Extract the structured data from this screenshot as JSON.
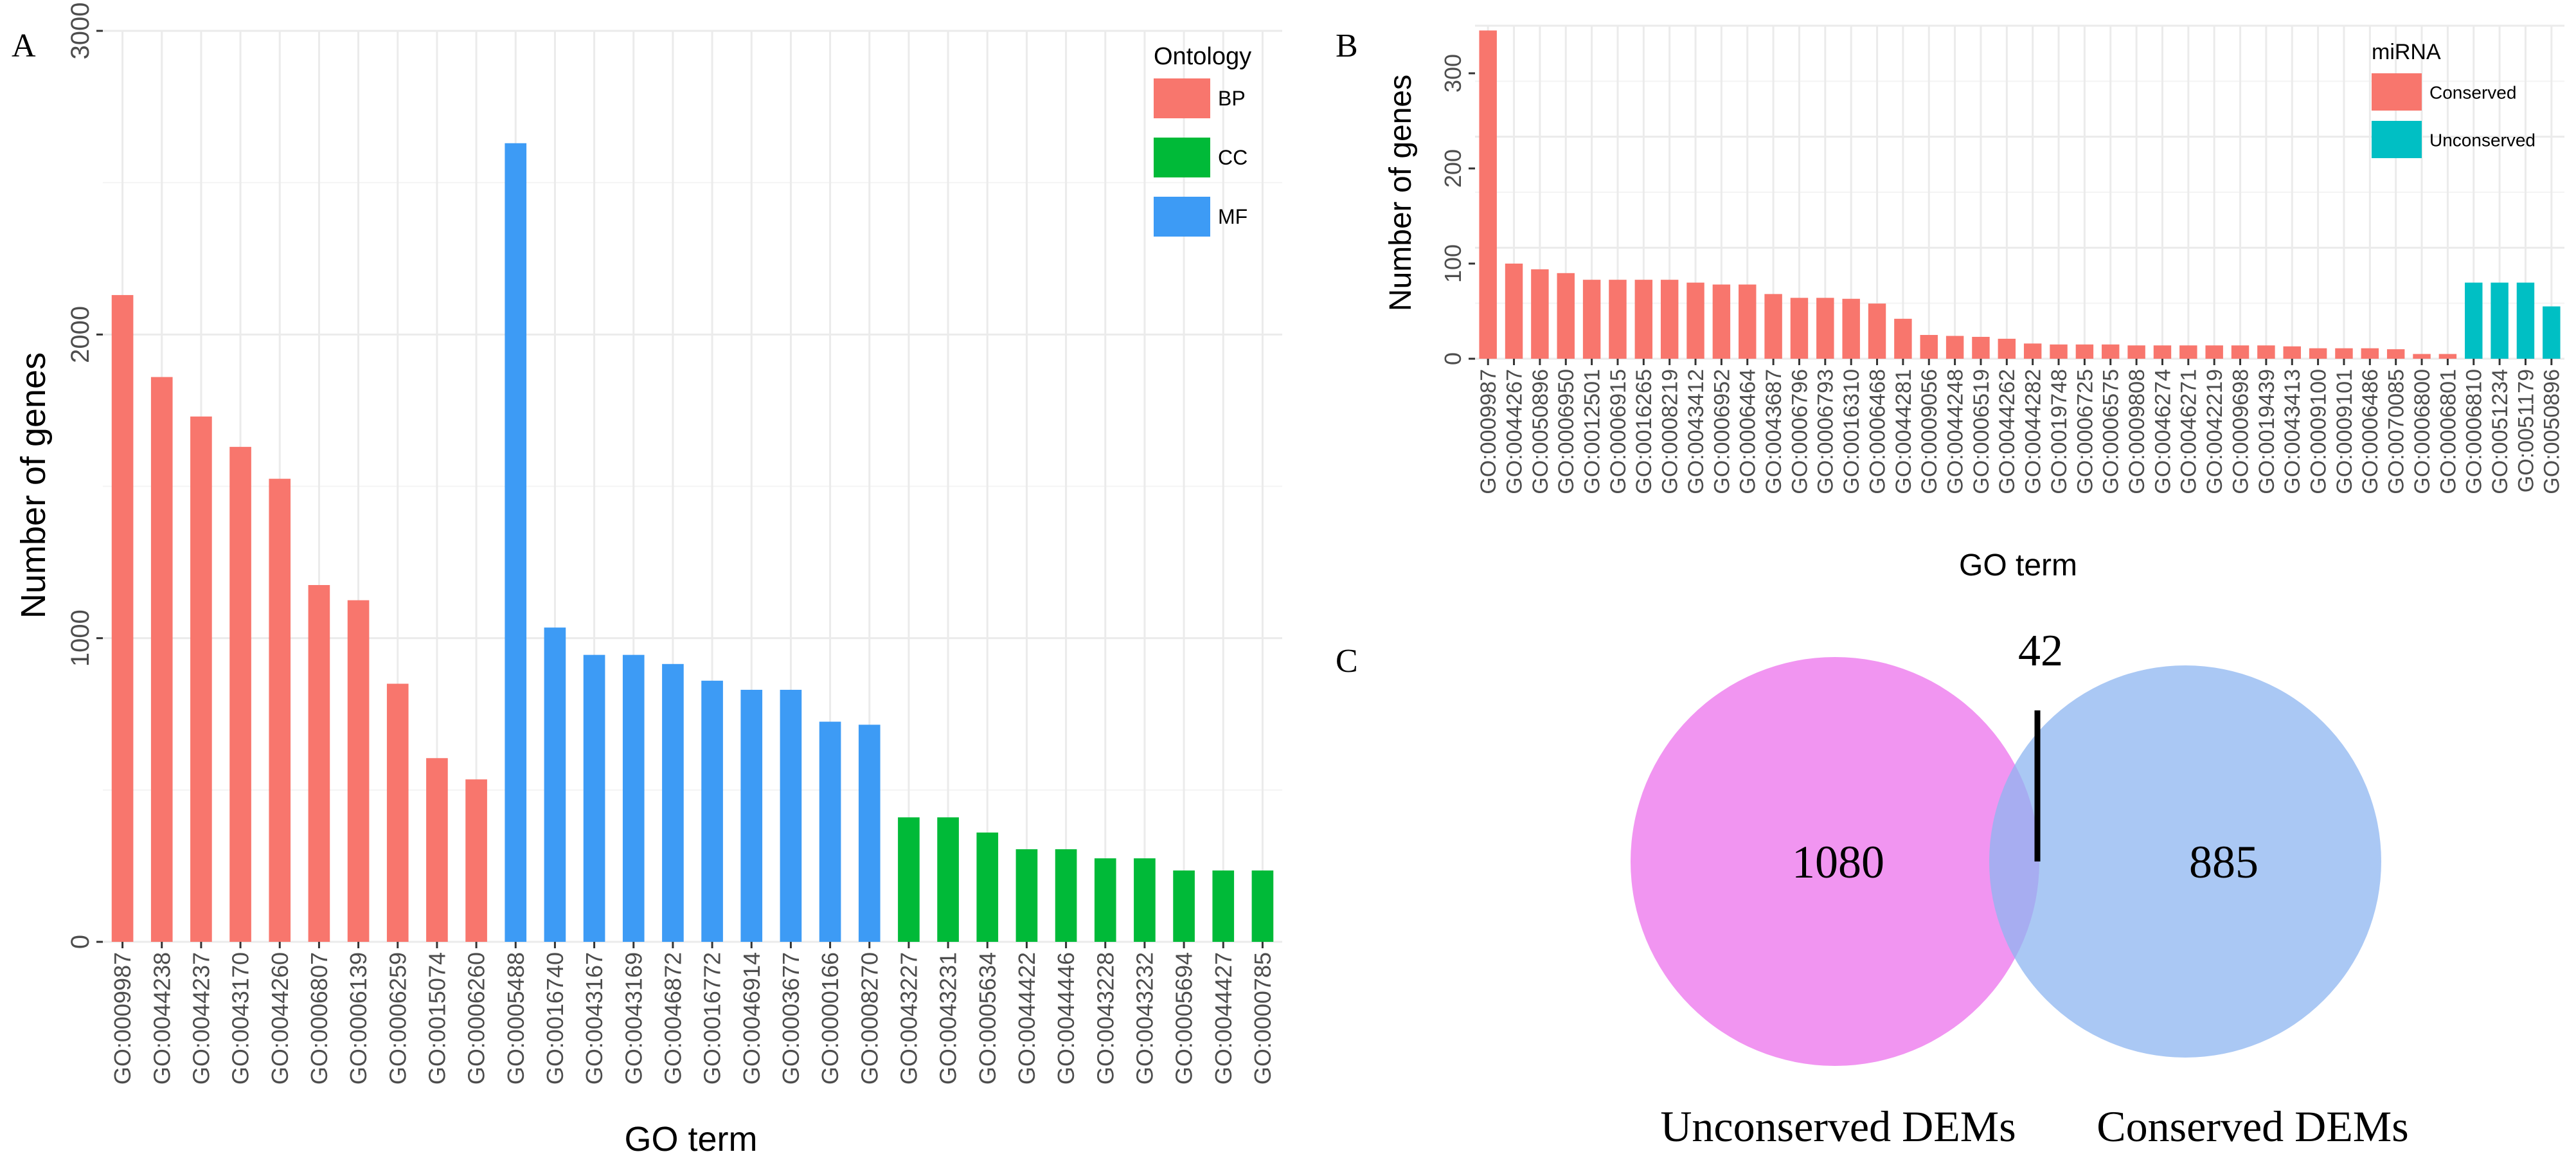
{
  "chart_data": [
    {
      "panel": "A",
      "type": "bar",
      "title": "",
      "xlabel": "GO term",
      "ylabel": "Number of genes",
      "ylim": [
        0,
        3000
      ],
      "yticks": [
        "0",
        "1000",
        "2000",
        "3000"
      ],
      "grid": true,
      "legend": {
        "title": "Ontology",
        "position": "top-right",
        "entries": [
          "BP",
          "CC",
          "MF"
        ]
      },
      "colors": {
        "BP": "#f8766d",
        "CC": "#00ba38",
        "MF": "#3d9bf5"
      },
      "categories": [
        "GO:0009987",
        "GO:0044238",
        "GO:0044237",
        "GO:0043170",
        "GO:0044260",
        "GO:0006807",
        "GO:0006139",
        "GO:0006259",
        "GO:0015074",
        "GO:0006260",
        "GO:0005488",
        "GO:0016740",
        "GO:0043167",
        "GO:0043169",
        "GO:0046872",
        "GO:0016772",
        "GO:0046914",
        "GO:0003677",
        "GO:0000166",
        "GO:0008270",
        "GO:0043227",
        "GO:0043231",
        "GO:0005634",
        "GO:0044422",
        "GO:0044446",
        "GO:0043228",
        "GO:0043232",
        "GO:0005694",
        "GO:0044427",
        "GO:0000785"
      ],
      "groups": [
        "BP",
        "BP",
        "BP",
        "BP",
        "BP",
        "BP",
        "BP",
        "BP",
        "BP",
        "BP",
        "MF",
        "MF",
        "MF",
        "MF",
        "MF",
        "MF",
        "MF",
        "MF",
        "MF",
        "MF",
        "CC",
        "CC",
        "CC",
        "CC",
        "CC",
        "CC",
        "CC",
        "CC",
        "CC",
        "CC"
      ],
      "values": [
        2130,
        1860,
        1730,
        1630,
        1525,
        1175,
        1125,
        850,
        605,
        535,
        2630,
        1035,
        945,
        945,
        915,
        860,
        830,
        830,
        725,
        715,
        410,
        410,
        360,
        305,
        305,
        275,
        275,
        235,
        235,
        235
      ]
    },
    {
      "panel": "B",
      "type": "bar",
      "title": "",
      "xlabel": "GO term",
      "ylabel": "Number of genes",
      "ylim": [
        0,
        350
      ],
      "yticks": [
        "0",
        "100",
        "200",
        "300"
      ],
      "grid": true,
      "legend": {
        "title": "miRNA",
        "position": "top-right",
        "entries": [
          "Conserved",
          "Unconserved"
        ]
      },
      "colors": {
        "Conserved": "#f8766d",
        "Unconserved": "#00bfc4"
      },
      "categories": [
        "GO:0009987",
        "GO:0044267",
        "GO:0050896",
        "GO:0006950",
        "GO:0012501",
        "GO:0006915",
        "GO:0016265",
        "GO:0008219",
        "GO:0043412",
        "GO:0006952",
        "GO:0006464",
        "GO:0043687",
        "GO:0006796",
        "GO:0006793",
        "GO:0016310",
        "GO:0006468",
        "GO:0044281",
        "GO:0009056",
        "GO:0044248",
        "GO:0006519",
        "GO:0044262",
        "GO:0044282",
        "GO:0019748",
        "GO:0006725",
        "GO:0006575",
        "GO:0009808",
        "GO:0046274",
        "GO:0046271",
        "GO:0042219",
        "GO:0009698",
        "GO:0019439",
        "GO:0043413",
        "GO:0009100",
        "GO:0009101",
        "GO:0006486",
        "GO:0070085",
        "GO:0006800",
        "GO:0006801",
        "GO:0006810",
        "GO:0051234",
        "GO:0051179",
        "GO:0050896"
      ],
      "groups": [
        "Conserved",
        "Conserved",
        "Conserved",
        "Conserved",
        "Conserved",
        "Conserved",
        "Conserved",
        "Conserved",
        "Conserved",
        "Conserved",
        "Conserved",
        "Conserved",
        "Conserved",
        "Conserved",
        "Conserved",
        "Conserved",
        "Conserved",
        "Conserved",
        "Conserved",
        "Conserved",
        "Conserved",
        "Conserved",
        "Conserved",
        "Conserved",
        "Conserved",
        "Conserved",
        "Conserved",
        "Conserved",
        "Conserved",
        "Conserved",
        "Conserved",
        "Conserved",
        "Conserved",
        "Conserved",
        "Conserved",
        "Conserved",
        "Conserved",
        "Conserved",
        "Unconserved",
        "Unconserved",
        "Unconserved",
        "Unconserved"
      ],
      "values": [
        345,
        100,
        94,
        90,
        83,
        83,
        83,
        83,
        80,
        78,
        78,
        68,
        64,
        64,
        63,
        58,
        42,
        25,
        24,
        23,
        21,
        16,
        15,
        15,
        15,
        14,
        14,
        14,
        14,
        14,
        14,
        13,
        11,
        11,
        11,
        10,
        5,
        5,
        80,
        80,
        80,
        55
      ]
    },
    {
      "panel": "C",
      "type": "venn",
      "sets": [
        {
          "name": "Unconserved DEMs",
          "only": "1080",
          "color": "#ee82ee"
        },
        {
          "name": "Conserved DEMs",
          "only": "885",
          "color": "#8db6f0"
        }
      ],
      "intersection": "42"
    }
  ]
}
